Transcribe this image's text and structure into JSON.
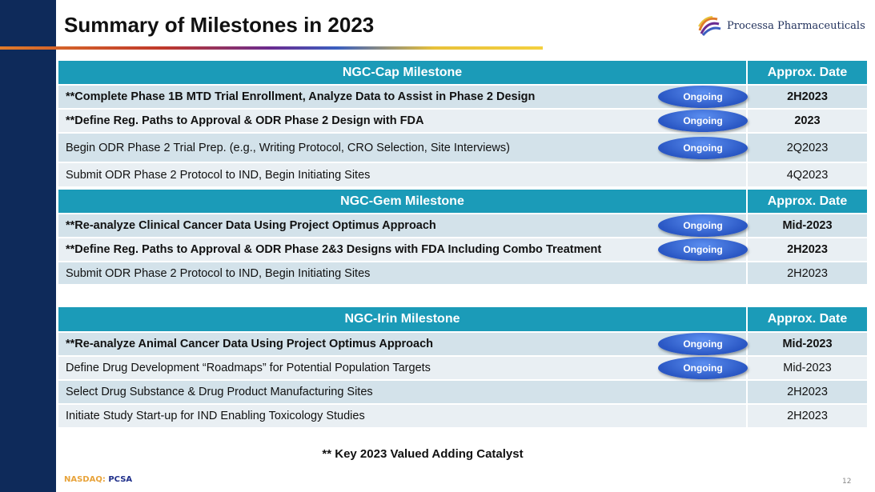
{
  "title": "Summary of Milestones in 2023",
  "logo": "Processa Pharmaceuticals",
  "tables": [
    {
      "header": {
        "milestone": "NGC-Cap Milestone",
        "date": "Approx. Date"
      },
      "rows": [
        {
          "milestone": "**Complete Phase 1B MTD Trial Enrollment, Analyze Data to Assist in Phase 2 Design",
          "date": "2H2023",
          "status": "Ongoing",
          "bold": true
        },
        {
          "milestone": "**Define Reg. Paths to Approval & ODR Phase 2 Design with FDA",
          "date": "2023",
          "status": "Ongoing",
          "bold": true
        },
        {
          "milestone": "Begin ODR Phase 2 Trial Prep. (e.g., Writing Protocol, CRO Selection, Site Interviews)",
          "date": "2Q2023",
          "status": "Ongoing",
          "bold": false
        },
        {
          "milestone": "Submit ODR Phase 2 Protocol to IND, Begin Initiating Sites",
          "date": "4Q2023",
          "bold": false
        }
      ]
    },
    {
      "header": {
        "milestone": "NGC-Gem Milestone",
        "date": "Approx. Date"
      },
      "rows": [
        {
          "milestone": "**Re-analyze Clinical Cancer Data Using Project Optimus Approach",
          "date": "Mid-2023",
          "status": "Ongoing",
          "bold": true
        },
        {
          "milestone": "**Define Reg. Paths to Approval & ODR Phase 2&3 Designs with FDA Including Combo Treatment",
          "date": "2H2023",
          "status": "Ongoing",
          "bold": true
        },
        {
          "milestone": "Submit ODR Phase 2 Protocol to IND, Begin Initiating Sites",
          "date": "2H2023",
          "bold": false
        }
      ]
    },
    {
      "header": {
        "milestone": "NGC-Irin Milestone",
        "date": "Approx. Date"
      },
      "rows": [
        {
          "milestone": "**Re-analyze Animal Cancer Data Using Project Optimus Approach",
          "date": "Mid-2023",
          "status": "Ongoing",
          "bold": true
        },
        {
          "milestone": "Define Drug Development “Roadmaps” for Potential Population Targets",
          "date": "Mid-2023",
          "status": "Ongoing",
          "bold": false
        },
        {
          "milestone": "Select Drug Substance & Drug Product Manufacturing Sites",
          "date": "2H2023",
          "bold": false
        },
        {
          "milestone": "Initiate Study Start-up for IND Enabling Toxicology Studies",
          "date": "2H2023",
          "bold": false
        }
      ]
    }
  ],
  "note": "** Key 2023 Valued Adding Catalyst",
  "footer": {
    "exchange": "NASDAQ:",
    "symbol": "PCSA",
    "page": "12"
  }
}
